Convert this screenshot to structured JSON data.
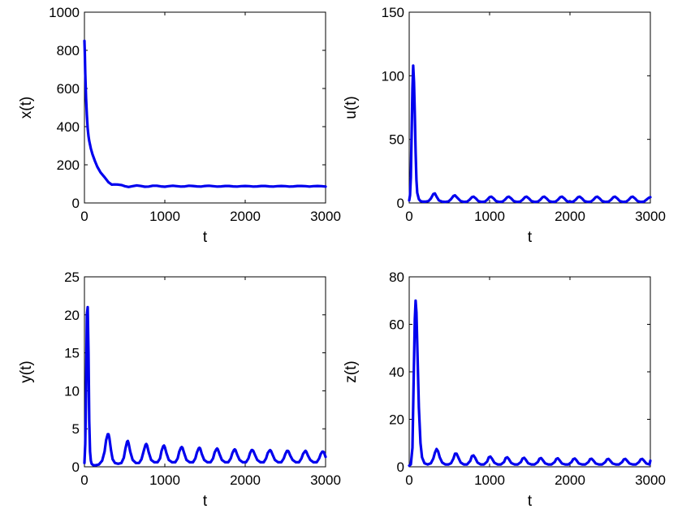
{
  "chart_data": [
    {
      "type": "line",
      "xlabel": "t",
      "ylabel": "x(t)",
      "xlim": [
        0,
        3000
      ],
      "ylim": [
        0,
        1000
      ],
      "xticks": [
        "0",
        "1000",
        "2000",
        "3000"
      ],
      "yticks": [
        "0",
        "200",
        "400",
        "600",
        "800",
        "1000"
      ],
      "color": "#0000ee",
      "series": [
        {
          "x": [
            0,
            5,
            10,
            20,
            30,
            40,
            50,
            60,
            80,
            100,
            130,
            160,
            200,
            250,
            300,
            340,
            380,
            420,
            460,
            500,
            550,
            600,
            650,
            700,
            750,
            800,
            850,
            900,
            950,
            1000,
            1050,
            1100,
            1150,
            1200,
            1250,
            1300,
            1350,
            1400,
            1450,
            1500,
            1550,
            1600,
            1650,
            1700,
            1750,
            1800,
            1850,
            1900,
            1950,
            2000,
            2050,
            2100,
            2150,
            2200,
            2250,
            2300,
            2350,
            2400,
            2450,
            2500,
            2550,
            2600,
            2650,
            2700,
            2750,
            2800,
            2850,
            2900,
            2950,
            3000
          ],
          "y": [
            850,
            780,
            680,
            550,
            460,
            390,
            350,
            325,
            285,
            255,
            220,
            190,
            160,
            135,
            108,
            96,
            97,
            96,
            94,
            88,
            84,
            88,
            92,
            89,
            85,
            86,
            90,
            90,
            87,
            85,
            88,
            90,
            88,
            86,
            87,
            90,
            89,
            87,
            86,
            89,
            90,
            88,
            86,
            87,
            89,
            89,
            87,
            86,
            88,
            89,
            88,
            86,
            87,
            89,
            89,
            87,
            86,
            88,
            89,
            88,
            86,
            87,
            89,
            89,
            88,
            86,
            88,
            89,
            88,
            86
          ]
        }
      ]
    },
    {
      "type": "line",
      "xlabel": "t",
      "ylabel": "u(t)",
      "xlim": [
        0,
        3000
      ],
      "ylim": [
        0,
        150
      ],
      "xticks": [
        "0",
        "1000",
        "2000",
        "3000"
      ],
      "yticks": [
        "0",
        "50",
        "100",
        "150"
      ],
      "color": "#0000ee",
      "series": [
        {
          "x": [
            0,
            10,
            20,
            30,
            40,
            50,
            60,
            70,
            80,
            90,
            100,
            120,
            140,
            170,
            200,
            240,
            270,
            300,
            320,
            340,
            370,
            410,
            450,
            490,
            520,
            550,
            570,
            600,
            640,
            680,
            720,
            750,
            780,
            800,
            830,
            860,
            900,
            940,
            970,
            1000,
            1020,
            1050,
            1080,
            1120,
            1160,
            1190,
            1220,
            1240,
            1270,
            1300,
            1340,
            1380,
            1410,
            1440,
            1460,
            1490,
            1520,
            1560,
            1600,
            1630,
            1660,
            1680,
            1710,
            1740,
            1780,
            1820,
            1850,
            1880,
            1900,
            1930,
            1960,
            2000,
            2040,
            2070,
            2100,
            2120,
            2150,
            2180,
            2220,
            2260,
            2290,
            2320,
            2340,
            2370,
            2400,
            2440,
            2480,
            2510,
            2540,
            2560,
            2590,
            2620,
            2660,
            2700,
            2730,
            2760,
            2780,
            2810,
            2840,
            2880,
            2920,
            2950,
            2980,
            3000
          ],
          "y": [
            2,
            6,
            20,
            55,
            90,
            108,
            95,
            70,
            40,
            18,
            8,
            3,
            1.5,
            1,
            1,
            1.5,
            3.5,
            7,
            7.5,
            5,
            2,
            1,
            0.8,
            1.2,
            3,
            5.5,
            6,
            4,
            1.5,
            0.8,
            1,
            2.5,
            4.5,
            5,
            3.5,
            1.5,
            0.8,
            1,
            2.5,
            4.5,
            5,
            3.5,
            1.5,
            0.8,
            1,
            2.5,
            4.5,
            5,
            3.5,
            1.5,
            0.8,
            1,
            2.5,
            4.5,
            5,
            3.5,
            1.5,
            0.8,
            1,
            2.5,
            4.5,
            5,
            3.5,
            1.5,
            0.8,
            1,
            2.5,
            4.5,
            5,
            3.5,
            1.5,
            0.8,
            1,
            2.5,
            4.5,
            5,
            3.5,
            1.5,
            0.8,
            1,
            2.5,
            4.5,
            5,
            3.5,
            1.5,
            0.8,
            1,
            2.5,
            4.5,
            5,
            3.5,
            1.5,
            0.8,
            1,
            2.5,
            4.5,
            5,
            3.5,
            1.5,
            0.8,
            1,
            2.5,
            4,
            4.5
          ]
        }
      ]
    },
    {
      "type": "line",
      "xlabel": "t",
      "ylabel": "y(t)",
      "xlim": [
        0,
        3000
      ],
      "ylim": [
        0,
        25
      ],
      "xticks": [
        "0",
        "1000",
        "2000",
        "3000"
      ],
      "yticks": [
        "0",
        "5",
        "10",
        "15",
        "20",
        "25"
      ],
      "color": "#0000ee",
      "series": [
        {
          "x": [
            0,
            10,
            20,
            30,
            40,
            50,
            60,
            70,
            80,
            90,
            110,
            140,
            180,
            220,
            250,
            270,
            290,
            300,
            310,
            330,
            350,
            380,
            420,
            460,
            490,
            510,
            530,
            540,
            550,
            570,
            600,
            640,
            680,
            710,
            740,
            760,
            770,
            780,
            800,
            830,
            870,
            910,
            940,
            960,
            980,
            990,
            1000,
            1020,
            1050,
            1090,
            1130,
            1160,
            1180,
            1200,
            1210,
            1220,
            1240,
            1270,
            1310,
            1350,
            1380,
            1400,
            1420,
            1430,
            1440,
            1460,
            1490,
            1530,
            1570,
            1600,
            1620,
            1640,
            1650,
            1660,
            1680,
            1710,
            1750,
            1790,
            1820,
            1840,
            1860,
            1870,
            1880,
            1900,
            1930,
            1970,
            2010,
            2040,
            2060,
            2080,
            2090,
            2100,
            2120,
            2150,
            2190,
            2230,
            2260,
            2280,
            2300,
            2310,
            2320,
            2340,
            2370,
            2410,
            2450,
            2480,
            2500,
            2520,
            2530,
            2540,
            2560,
            2590,
            2630,
            2670,
            2700,
            2720,
            2740,
            2750,
            2760,
            2780,
            2810,
            2850,
            2890,
            2920,
            2940,
            2960,
            2970,
            2980,
            3000
          ],
          "y": [
            0.5,
            3,
            10,
            20,
            21,
            15,
            6,
            2,
            0.8,
            0.4,
            0.2,
            0.2,
            0.3,
            0.8,
            2,
            3.5,
            4.3,
            4.3,
            3.8,
            2.2,
            1,
            0.5,
            0.4,
            0.5,
            1.2,
            2.4,
            3.3,
            3.4,
            3.1,
            2,
            0.9,
            0.5,
            0.5,
            1,
            2.2,
            2.9,
            3,
            2.8,
            1.9,
            0.9,
            0.6,
            0.6,
            1.1,
            2.1,
            2.7,
            2.8,
            2.6,
            1.8,
            0.9,
            0.6,
            0.6,
            1.1,
            2,
            2.5,
            2.6,
            2.5,
            1.8,
            0.9,
            0.6,
            0.6,
            1.1,
            1.9,
            2.4,
            2.5,
            2.4,
            1.7,
            0.9,
            0.6,
            0.6,
            1.1,
            1.9,
            2.3,
            2.4,
            2.3,
            1.7,
            0.9,
            0.6,
            0.6,
            1.1,
            1.8,
            2.2,
            2.3,
            2.2,
            1.6,
            0.9,
            0.6,
            0.6,
            1.1,
            1.8,
            2.2,
            2.2,
            2.1,
            1.6,
            0.9,
            0.6,
            0.6,
            1.1,
            1.8,
            2.1,
            2.2,
            2.1,
            1.6,
            0.9,
            0.6,
            0.6,
            1.1,
            1.7,
            2.1,
            2.1,
            2,
            1.5,
            0.9,
            0.6,
            0.6,
            1.1,
            1.7,
            2,
            2.1,
            2,
            1.5,
            0.9,
            0.6,
            0.6,
            1.1,
            1.7,
            2,
            2,
            1.9,
            1.3
          ]
        }
      ]
    },
    {
      "type": "line",
      "xlabel": "t",
      "ylabel": "z(t)",
      "xlim": [
        0,
        3000
      ],
      "ylim": [
        0,
        80
      ],
      "xticks": [
        "0",
        "1000",
        "2000",
        "3000"
      ],
      "yticks": [
        "0",
        "20",
        "40",
        "60",
        "80"
      ],
      "color": "#0000ee",
      "series": [
        {
          "x": [
            0,
            20,
            40,
            55,
            70,
            80,
            90,
            105,
            120,
            140,
            160,
            190,
            230,
            270,
            300,
            320,
            340,
            360,
            380,
            410,
            450,
            490,
            520,
            550,
            570,
            590,
            610,
            640,
            680,
            720,
            760,
            780,
            800,
            820,
            850,
            890,
            930,
            970,
            990,
            1010,
            1030,
            1060,
            1100,
            1140,
            1180,
            1200,
            1220,
            1240,
            1270,
            1310,
            1350,
            1390,
            1410,
            1430,
            1450,
            1480,
            1520,
            1560,
            1600,
            1620,
            1640,
            1660,
            1690,
            1730,
            1770,
            1810,
            1830,
            1850,
            1870,
            1900,
            1940,
            1980,
            2020,
            2040,
            2060,
            2080,
            2110,
            2150,
            2190,
            2230,
            2250,
            2270,
            2290,
            2320,
            2360,
            2400,
            2440,
            2460,
            2480,
            2500,
            2530,
            2570,
            2610,
            2650,
            2670,
            2690,
            2710,
            2740,
            2780,
            2820,
            2860,
            2880,
            2900,
            2920,
            2950,
            2990,
            3000
          ],
          "y": [
            0.5,
            1,
            8,
            35,
            62,
            70,
            65,
            45,
            25,
            10,
            4,
            1.5,
            1,
            1.5,
            3.5,
            6,
            7.5,
            6.5,
            4,
            1.8,
            1,
            1,
            1.5,
            3.5,
            5.5,
            5.5,
            4,
            1.8,
            1,
            1,
            2.5,
            4.5,
            4.8,
            3.8,
            1.8,
            1,
            1,
            2.2,
            4,
            4.3,
            3.4,
            1.7,
            1,
            1,
            2,
            3.7,
            4,
            3.2,
            1.6,
            1,
            1,
            2,
            3.5,
            3.8,
            3,
            1.5,
            1,
            1,
            2,
            3.4,
            3.7,
            2.9,
            1.5,
            1,
            1,
            2,
            3.3,
            3.6,
            2.8,
            1.4,
            1,
            1,
            2,
            3.2,
            3.5,
            2.8,
            1.4,
            1,
            1,
            2,
            3.2,
            3.4,
            2.7,
            1.4,
            1,
            1,
            2,
            3.1,
            3.3,
            2.6,
            1.4,
            1,
            1,
            2,
            3.1,
            3.3,
            2.6,
            1.4,
            1,
            1,
            2,
            3.1,
            3.3,
            2.6,
            1.4,
            1,
            2.6
          ]
        }
      ]
    }
  ]
}
